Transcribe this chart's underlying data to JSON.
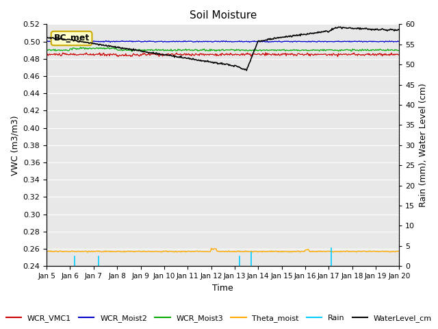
{
  "title": "Soil Moisture",
  "xlabel": "Time",
  "ylabel_left": "VWC (m3/m3)",
  "ylabel_right": "Rain (mm), Water Level (cm)",
  "ylim_left": [
    0.24,
    0.52
  ],
  "ylim_right": [
    0,
    60
  ],
  "xlim": [
    0,
    15
  ],
  "x_tick_labels": [
    "Jan 5",
    "Jan 6",
    "Jan 7",
    "Jan 8",
    "Jan 9",
    "Jan 10",
    "Jan 11",
    "Jan 12",
    "Jan 13",
    "Jan 14",
    "Jan 15",
    "Jan 16",
    "Jan 17",
    "Jan 18",
    "Jan 19",
    "Jan 20"
  ],
  "annotation_text": "BC_met",
  "annotation_box_color": "#ffffcc",
  "annotation_box_edge": "#ccaa00",
  "bg_color": "#e8e8e8",
  "wcr_vmc1_color": "#cc0000",
  "wcr_moist2_color": "#0000cc",
  "wcr_moist3_color": "#00aa00",
  "theta_moist_color": "#ffaa00",
  "rain_color": "#00ccff",
  "water_level_color": "#000000",
  "legend_entries": [
    "WCR_VMC1",
    "WCR_Moist2",
    "WCR_Moist3",
    "Theta_moist",
    "Rain",
    "WaterLevel_cm"
  ],
  "legend_colors": [
    "#cc0000",
    "#0000cc",
    "#00aa00",
    "#ffaa00",
    "#00ccff",
    "#000000"
  ],
  "right_ticks": [
    0,
    5,
    10,
    15,
    20,
    25,
    30,
    35,
    40,
    45,
    50,
    55,
    60
  ],
  "left_ticks": [
    0.24,
    0.26,
    0.28,
    0.3,
    0.32,
    0.34,
    0.36,
    0.38,
    0.4,
    0.42,
    0.44,
    0.46,
    0.48,
    0.5,
    0.52
  ]
}
